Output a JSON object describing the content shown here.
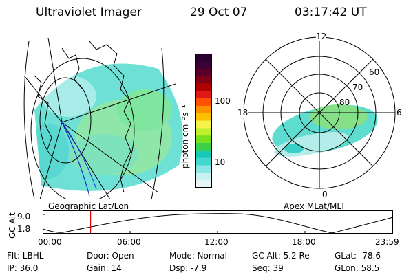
{
  "header": {
    "title": "Ultraviolet Imager",
    "date": "29 Oct 07",
    "time": "03:17:42 UT"
  },
  "colorbar": {
    "label": "photon cm⁻²s⁻¹",
    "ticks": [
      "100",
      "10"
    ],
    "colors": [
      "#2a0030",
      "#3a0038",
      "#5a0028",
      "#800018",
      "#b00000",
      "#e01818",
      "#ff5000",
      "#ff9000",
      "#ffc000",
      "#f6f24c",
      "#bff02a",
      "#78e01e",
      "#3ad04a",
      "#1ac8b8",
      "#40d8d0",
      "#8ae8e4",
      "#c8f2f0",
      "#e6f6f6"
    ]
  },
  "geo_map": {
    "caption": "Geographic Lat/Lon"
  },
  "polar_map": {
    "caption": "Apex MLat/MLT",
    "mlt_labels": {
      "top": "12",
      "left": "18",
      "right": "6",
      "bottom": "0"
    },
    "lat_labels": [
      "60",
      "70",
      "80"
    ]
  },
  "altitude_plot": {
    "ylabel": "GC Alt",
    "yticks": [
      "9.0",
      "1.8"
    ],
    "xticks": [
      "00:00",
      "06:00",
      "12:00",
      "18:00",
      "23:59"
    ],
    "current_time_hours": 3.29
  },
  "info": {
    "flt": "Flt: LBHL",
    "ip": "IP: 36.0",
    "door": "Door: Open",
    "gain": "Gain: 14",
    "mode": "Mode: Normal",
    "dsp": "Dsp:   -7.9",
    "gc_alt": "GC Alt: 5.2 Re",
    "seq": "Seq: 39",
    "glat": "GLat: -78.6",
    "glon": "GLon:  58.5"
  }
}
